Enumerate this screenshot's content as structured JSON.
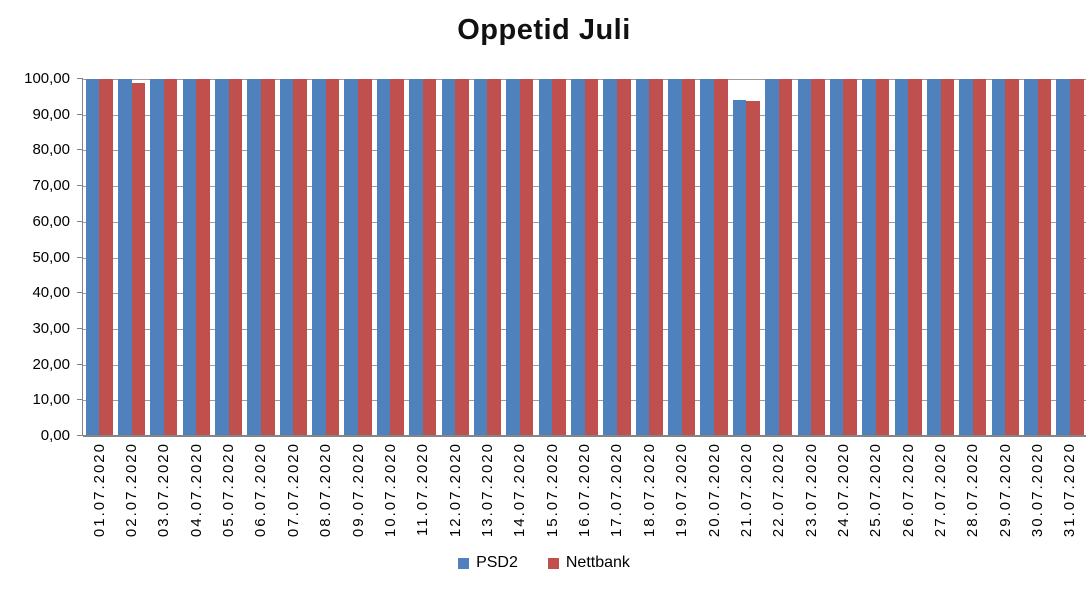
{
  "chart_data": {
    "type": "bar",
    "title": "Oppetid Juli",
    "categories": [
      "01.07.2020",
      "02.07.2020",
      "03.07.2020",
      "04.07.2020",
      "05.07.2020",
      "06.07.2020",
      "07.07.2020",
      "08.07.2020",
      "09.07.2020",
      "10.07.2020",
      "11.07.2020",
      "12.07.2020",
      "13.07.2020",
      "14.07.2020",
      "15.07.2020",
      "16.07.2020",
      "17.07.2020",
      "18.07.2020",
      "19.07.2020",
      "20.07.2020",
      "21.07.2020",
      "22.07.2020",
      "23.07.2020",
      "24.07.2020",
      "25.07.2020",
      "26.07.2020",
      "27.07.2020",
      "28.07.2020",
      "29.07.2020",
      "30.07.2020",
      "31.07.2020"
    ],
    "series": [
      {
        "name": "PSD2",
        "color": "#4F81BD",
        "values": [
          100,
          100,
          100,
          100,
          100,
          100,
          100,
          100,
          100,
          100,
          100,
          100,
          100,
          100,
          100,
          100,
          100,
          100,
          100,
          100,
          94.1,
          100,
          100,
          100,
          100,
          100,
          100,
          100,
          100,
          100,
          100
        ]
      },
      {
        "name": "Nettbank",
        "color": "#C0504D",
        "values": [
          100,
          99.0,
          100,
          100,
          100,
          100,
          100,
          100,
          100,
          100,
          100,
          100,
          100,
          100,
          100,
          100,
          100,
          100,
          100,
          100,
          93.9,
          100,
          100,
          100,
          100,
          100,
          100,
          100,
          100,
          100,
          100
        ]
      }
    ],
    "ylim": [
      0,
      100
    ],
    "ytick_step": 10,
    "ytick_labels_bottom_to_top": [
      "0,00",
      "10,00",
      "20,00",
      "30,00",
      "40,00",
      "50,00",
      "60,00",
      "70,00",
      "80,00",
      "90,00",
      "100,00"
    ],
    "xlabel": "",
    "ylabel": "",
    "grid": true,
    "legend_position": "bottom"
  }
}
